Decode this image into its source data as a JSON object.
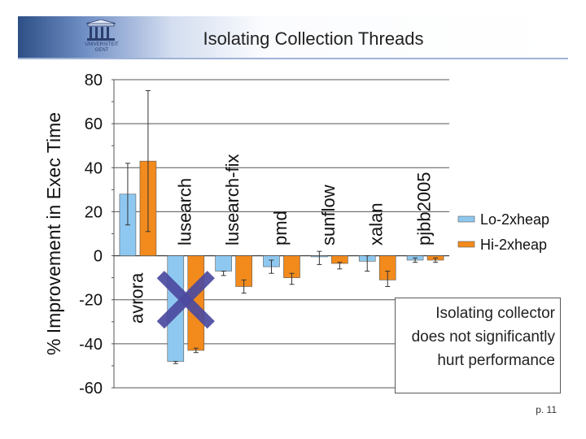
{
  "header": {
    "title": "Isolating Collection Threads",
    "logo_text": "UNIVERSITEIT\nGENT"
  },
  "note": "Isolating collector does not significantly hurt performance",
  "page_number": "p. 11",
  "colors": {
    "lo": "#8ec8f0",
    "hi": "#f28a1c",
    "cross": "#4b4aa0"
  },
  "chart_data": {
    "type": "bar",
    "ylabel": "% Improvement in Exec Time",
    "xlabel": "",
    "ylim": [
      -60,
      80
    ],
    "yticks": [
      80,
      60,
      40,
      20,
      0,
      -20,
      -40,
      -60
    ],
    "grid": true,
    "legend_position": "right",
    "categories": [
      "avrora",
      "lusearch",
      "lusearch-fix",
      "pmd",
      "sunflow",
      "xalan",
      "pjbb2005"
    ],
    "series": [
      {
        "name": "Lo-2xheap",
        "values": [
          28,
          -48,
          -7,
          -5,
          -0.5,
          -2.5,
          -2
        ],
        "err": [
          [
            14,
            42
          ],
          [
            -49,
            -48
          ],
          [
            -9,
            -7
          ],
          [
            -8,
            -2
          ],
          [
            -4,
            2
          ],
          [
            -7,
            0
          ],
          [
            -3,
            -1
          ]
        ]
      },
      {
        "name": "Hi-2xheap",
        "values": [
          43,
          -43,
          -14,
          -10,
          -3.5,
          -11,
          -2
        ],
        "err": [
          [
            11,
            75
          ],
          [
            -44,
            -42
          ],
          [
            -17,
            -11
          ],
          [
            -13,
            -8
          ],
          [
            -6,
            -3
          ],
          [
            -14,
            -7
          ],
          [
            -3,
            -1
          ]
        ]
      }
    ],
    "annotation": "cross-mark over lusearch"
  }
}
